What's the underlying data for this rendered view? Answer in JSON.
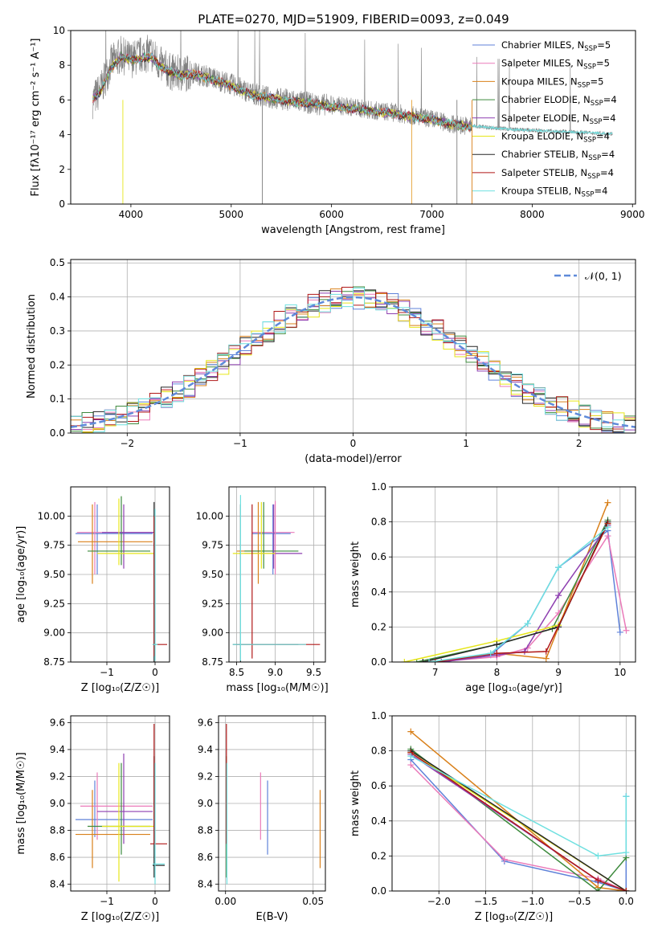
{
  "figure": {
    "title": "PLATE=0270, MJD=51909, FIBERID=0093, z=0.049"
  },
  "models": [
    {
      "name": "Chabrier MILES",
      "nssp": "5",
      "color": "#5f82d9"
    },
    {
      "name": "Salpeter MILES",
      "nssp": "5",
      "color": "#ea7ab9"
    },
    {
      "name": "Kroupa MILES",
      "nssp": "5",
      "color": "#d9801a"
    },
    {
      "name": "Chabrier ELODIE",
      "nssp": "4",
      "color": "#3d8a3d"
    },
    {
      "name": "Salpeter ELODIE",
      "nssp": "4",
      "color": "#8e3fb0"
    },
    {
      "name": "Kroupa ELODIE",
      "nssp": "4",
      "color": "#e6e61a"
    },
    {
      "name": "Chabrier STELIB",
      "nssp": "4",
      "color": "#262626"
    },
    {
      "name": "Salpeter STELIB",
      "nssp": "4",
      "color": "#b01818"
    },
    {
      "name": "Kroupa STELIB",
      "nssp": "4",
      "color": "#6fe0e0"
    }
  ],
  "chart_data": [
    {
      "id": "spectrum",
      "type": "line",
      "title": "PLATE=0270, MJD=51909, FIBERID=0093, z=0.049",
      "xlabel": "wavelength [Angstrom, rest frame]",
      "ylabel": "Flux [fλ10⁻¹⁷ erg cm⁻² s⁻¹ A⁻¹]",
      "xlim": [
        3400,
        9030
      ],
      "ylim": [
        0,
        10
      ],
      "xticks": [
        4000,
        5000,
        6000,
        7000,
        8000,
        9000
      ],
      "yticks": [
        0,
        2,
        4,
        6,
        8,
        10
      ],
      "legend": "right",
      "data_series": {
        "name": "data",
        "color": "#808080",
        "x": [
          3620,
          3700,
          3800,
          3900,
          4000,
          4100,
          4200,
          4300,
          4400,
          4500,
          4600,
          4800,
          5000,
          5200,
          5400,
          5600,
          5800,
          6000,
          6200,
          6400,
          6600,
          6800,
          7000,
          7200,
          7400,
          7600,
          7800,
          8000,
          8200,
          8400,
          8600,
          8800
        ],
        "y": [
          6.0,
          6.6,
          8.1,
          8.6,
          8.3,
          8.6,
          8.7,
          8.0,
          7.6,
          7.5,
          7.6,
          7.3,
          6.9,
          6.4,
          6.1,
          6.0,
          5.8,
          5.7,
          5.6,
          5.4,
          5.3,
          5.1,
          4.9,
          4.6,
          4.5,
          4.4,
          4.3,
          4.25,
          4.2,
          4.15,
          4.1,
          4.05
        ]
      },
      "model_curve": {
        "x": [
          3620,
          3700,
          3800,
          3900,
          4000,
          4100,
          4200,
          4300,
          4400,
          4500,
          4600,
          4800,
          5000,
          5200,
          5400,
          5600,
          5800,
          6000,
          6200,
          6400,
          6600,
          6800,
          7000,
          7200,
          7400
        ],
        "y": [
          6.1,
          6.5,
          7.8,
          8.5,
          8.3,
          8.4,
          8.5,
          7.9,
          7.6,
          7.4,
          7.5,
          7.2,
          6.8,
          6.3,
          6.1,
          5.9,
          5.8,
          5.6,
          5.5,
          5.35,
          5.2,
          5.05,
          4.85,
          4.6,
          4.45
        ]
      }
    },
    {
      "id": "residuals",
      "type": "line",
      "xlabel": "(data-model)/error",
      "ylabel": "Normed distribution",
      "xlim": [
        -2.5,
        2.5
      ],
      "ylim": [
        0,
        0.51
      ],
      "xticks": [
        -2,
        -1,
        0,
        1,
        2
      ],
      "yticks": [
        0.0,
        0.1,
        0.2,
        0.3,
        0.4,
        0.5
      ],
      "legend": "top-right",
      "normal_label": "𝒩(0, 1)",
      "normal_color": "#5f8ad9",
      "bin_width": 0.1
    },
    {
      "id": "age_vs_Z",
      "type": "scatter",
      "xlabel": "Z [log₁₀(Z/Z☉)]",
      "ylabel": "age  [log₁₀(age/yr)]",
      "xlim": [
        -1.75,
        0.3
      ],
      "ylim": [
        8.75,
        10.25
      ],
      "xticks": [
        -1,
        0
      ],
      "yticks": [
        8.75,
        9.0,
        9.25,
        9.5,
        9.75,
        10.0
      ],
      "ytick_labels": [
        "8.75",
        "9.00",
        "9.25",
        "9.50",
        "9.75",
        "10.00"
      ]
    },
    {
      "id": "age_vs_mass",
      "type": "scatter",
      "xlabel": "mass [log₁₀(M/M☉)]",
      "xlim": [
        8.4,
        9.65
      ],
      "ylim": [
        8.75,
        10.25
      ],
      "xticks": [
        8.5,
        9.0,
        9.5
      ],
      "xtick_labels": [
        "8.5",
        "9.0",
        "9.5"
      ],
      "yticks": [
        8.75,
        9.0,
        9.25,
        9.5,
        9.75,
        10.0
      ],
      "ytick_labels": [
        "8.75",
        "9.00",
        "9.25",
        "9.50",
        "9.75",
        "10.00"
      ]
    },
    {
      "id": "massweight_vs_age",
      "type": "line",
      "xlabel": "age  [log₁₀(age/yr)]",
      "ylabel": "mass weight",
      "xlim": [
        6.3,
        10.25
      ],
      "ylim": [
        0,
        1
      ],
      "xticks": [
        7,
        8,
        9,
        10
      ],
      "yticks": [
        0.0,
        0.2,
        0.4,
        0.6,
        0.8,
        1.0
      ],
      "series": [
        {
          "model": 0,
          "x": [
            7.0,
            7.9,
            8.5,
            9.0,
            9.8,
            10.0
          ],
          "y": [
            0.0,
            0.04,
            0.22,
            0.54,
            0.75,
            0.17
          ]
        },
        {
          "model": 1,
          "x": [
            7.0,
            8.0,
            8.5,
            9.0,
            9.8,
            10.1
          ],
          "y": [
            0.0,
            0.03,
            0.08,
            0.28,
            0.72,
            0.18
          ]
        },
        {
          "model": 2,
          "x": [
            7.0,
            8.0,
            8.8,
            9.8
          ],
          "y": [
            0.0,
            0.05,
            0.02,
            0.91
          ]
        },
        {
          "model": 3,
          "x": [
            6.7,
            8.0,
            8.9,
            9.8
          ],
          "y": [
            0.0,
            0.1,
            0.19,
            0.81
          ]
        },
        {
          "model": 4,
          "x": [
            7.1,
            8.0,
            8.45,
            9.0,
            9.8
          ],
          "y": [
            0.0,
            0.04,
            0.06,
            0.38,
            0.78
          ]
        },
        {
          "model": 5,
          "x": [
            6.5,
            8.0,
            9.0,
            9.8
          ],
          "y": [
            0.0,
            0.12,
            0.21,
            0.79
          ]
        },
        {
          "model": 6,
          "x": [
            6.8,
            8.0,
            9.0,
            9.8
          ],
          "y": [
            0.0,
            0.1,
            0.2,
            0.8
          ]
        },
        {
          "model": 7,
          "x": [
            7.0,
            8.0,
            8.8,
            9.8
          ],
          "y": [
            0.0,
            0.05,
            0.06,
            0.79
          ]
        },
        {
          "model": 8,
          "x": [
            6.9,
            7.9,
            8.5,
            9.0,
            9.8
          ],
          "y": [
            0.0,
            0.05,
            0.22,
            0.54,
            0.77
          ]
        }
      ]
    },
    {
      "id": "mass_vs_Z",
      "type": "scatter",
      "xlabel": "Z [log₁₀(Z/Z☉)]",
      "ylabel": "mass [log₁₀(M/M☉)]",
      "xlim": [
        -1.75,
        0.3
      ],
      "ylim": [
        8.35,
        9.65
      ],
      "xticks": [
        -1,
        0
      ],
      "yticks": [
        8.4,
        8.6,
        8.8,
        9.0,
        9.2,
        9.4,
        9.6
      ],
      "ytick_labels": [
        "8.4",
        "8.6",
        "8.8",
        "9.0",
        "9.2",
        "9.4",
        "9.6"
      ]
    },
    {
      "id": "mass_vs_EBV",
      "type": "scatter",
      "xlabel": "E(B-V)",
      "xlim": [
        -0.004,
        0.057
      ],
      "ylim": [
        8.35,
        9.65
      ],
      "xticks": [
        0.0,
        0.05
      ],
      "xtick_labels": [
        "0.00",
        "0.05"
      ],
      "yticks": [
        8.4,
        8.6,
        8.8,
        9.0,
        9.2,
        9.4,
        9.6
      ],
      "ytick_labels": [
        "8.4",
        "8.6",
        "8.8",
        "9.0",
        "9.2",
        "9.4",
        "9.6"
      ],
      "points": [
        {
          "model": 0,
          "x": 0.024,
          "ylo": 8.62,
          "yhi": 9.17
        },
        {
          "model": 1,
          "x": 0.02,
          "ylo": 8.73,
          "yhi": 9.23
        },
        {
          "model": 2,
          "x": 0.054,
          "ylo": 8.52,
          "yhi": 9.1
        },
        {
          "model": 3,
          "x": 0.0005,
          "ylo": 8.45,
          "yhi": 9.35
        },
        {
          "model": 7,
          "x": 0.0005,
          "ylo": 8.7,
          "yhi": 9.59
        },
        {
          "model": 8,
          "x": 0.0008,
          "ylo": 8.4,
          "yhi": 9.3
        }
      ]
    },
    {
      "id": "massweight_vs_Z",
      "type": "line",
      "xlabel": "Z [log₁₀(Z/Z☉)]",
      "ylabel": "mass weight",
      "xlim": [
        -2.5,
        0.1
      ],
      "ylim": [
        0,
        1
      ],
      "xticks": [
        -2.0,
        -1.5,
        -1.0,
        -0.5,
        0.0
      ],
      "xtick_labels": [
        "−2.0",
        "−1.5",
        "−1.0",
        "−0.5",
        "0.0"
      ],
      "yticks": [
        0.0,
        0.2,
        0.4,
        0.6,
        0.8,
        1.0
      ],
      "series": [
        {
          "model": 0,
          "x": [
            -2.3,
            -1.3,
            -0.3,
            0.0,
            0.0
          ],
          "y": [
            0.75,
            0.17,
            0.05,
            0.0,
            0.54
          ]
        },
        {
          "model": 1,
          "x": [
            -2.3,
            -1.3,
            -0.3,
            0.0
          ],
          "y": [
            0.72,
            0.18,
            0.07,
            0.0
          ]
        },
        {
          "model": 2,
          "x": [
            -2.3,
            -0.3,
            0.0
          ],
          "y": [
            0.91,
            0.02,
            0.0
          ]
        },
        {
          "model": 3,
          "x": [
            -2.3,
            -0.3,
            0.0
          ],
          "y": [
            0.81,
            0.0,
            0.19
          ]
        },
        {
          "model": 4,
          "x": [
            -2.3,
            -0.3,
            0.0
          ],
          "y": [
            0.78,
            0.06,
            0.0
          ]
        },
        {
          "model": 5,
          "x": [
            -2.3,
            0.0
          ],
          "y": [
            0.79,
            0.0
          ]
        },
        {
          "model": 6,
          "x": [
            -2.3,
            0.0
          ],
          "y": [
            0.8,
            0.0
          ]
        },
        {
          "model": 7,
          "x": [
            -2.3,
            -0.3,
            0.0
          ],
          "y": [
            0.79,
            0.06,
            0.0
          ]
        },
        {
          "model": 8,
          "x": [
            -2.3,
            -0.3,
            0.0,
            0.0
          ],
          "y": [
            0.77,
            0.2,
            0.22,
            0.54
          ]
        }
      ]
    }
  ]
}
